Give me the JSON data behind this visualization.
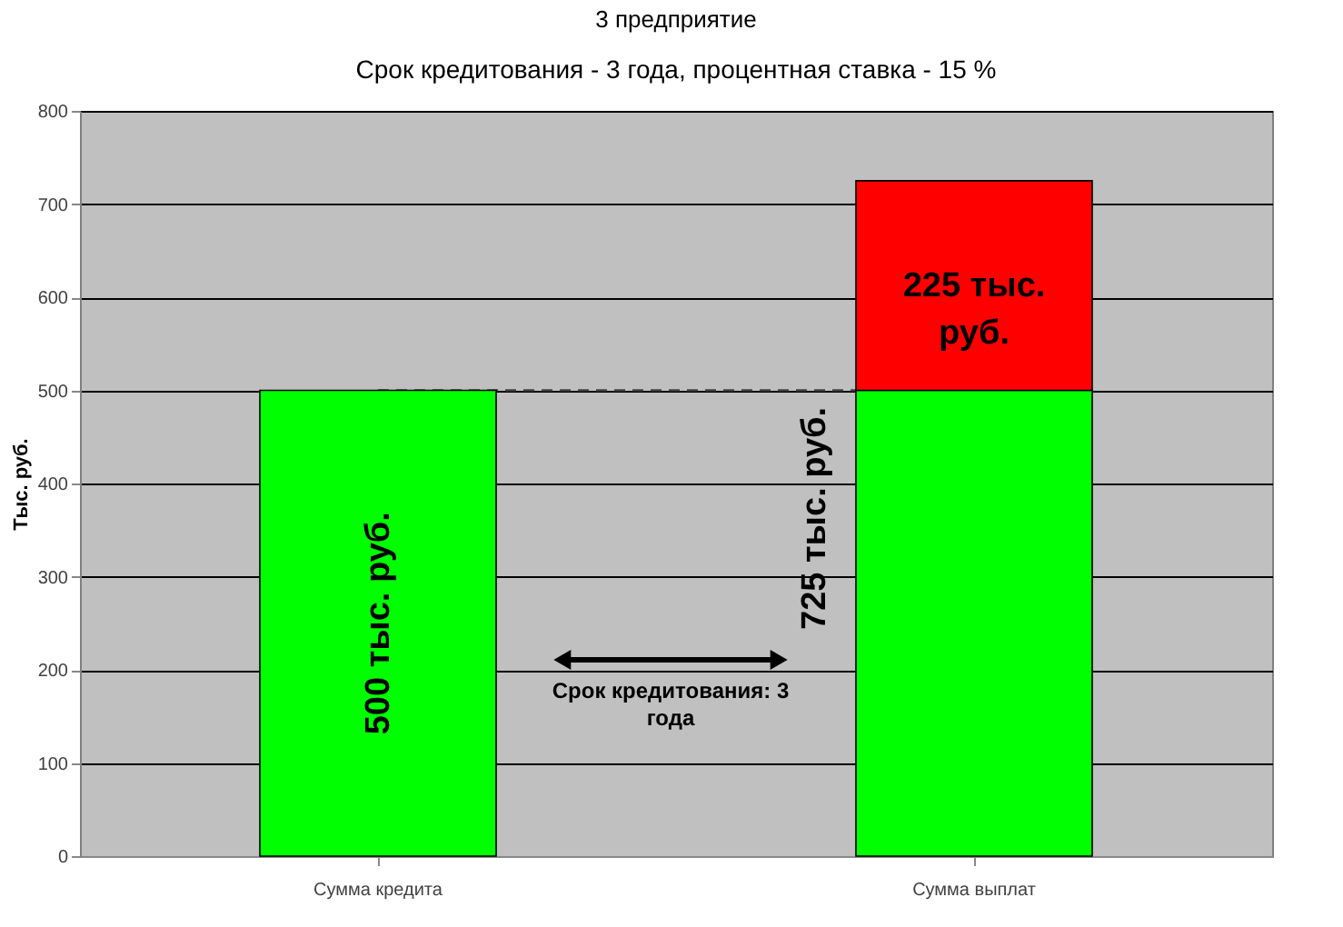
{
  "chart_data": {
    "type": "bar",
    "title": "3 предприятие",
    "subtitle": "Срок кредитования - 3 года, процентная ставка - 15 %",
    "ylabel": "Тыс. руб.",
    "categories": [
      "Сумма кредита",
      "Сумма выплат"
    ],
    "stacked": true,
    "series": [
      {
        "color": "#00ff00",
        "values": [
          500,
          500
        ],
        "value_labels": [
          "500 тыс. руб.",
          null
        ]
      },
      {
        "color": "#ff0000",
        "values": [
          null,
          225
        ],
        "value_labels": [
          null,
          "225 тыс. руб."
        ]
      }
    ],
    "totals": [
      null,
      "725 тыс. руб."
    ],
    "ref_lines": [
      {
        "axis": "y",
        "value": 500,
        "line_style": "dashed",
        "color": "#404040"
      }
    ],
    "annotations": [
      "Срок кредитования: 3 года"
    ],
    "ylim": [
      0,
      800
    ],
    "yticks": [
      0,
      100,
      200,
      300,
      400,
      500,
      600,
      700,
      800
    ],
    "grid": "y"
  }
}
